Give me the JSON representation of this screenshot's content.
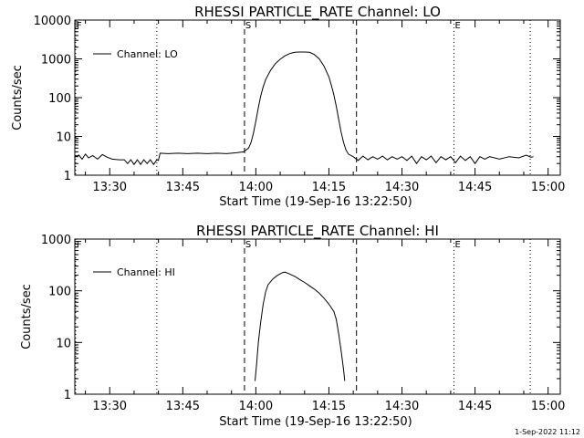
{
  "footer_timestamp": "1-Sep-2022 11:12",
  "chart_data": [
    {
      "type": "line",
      "title": "RHESSI PARTICLE_RATE Channel: LO",
      "xlabel": "Start Time (19-Sep-16 13:22:50)",
      "ylabel": "Counts/sec",
      "y_scale": "log",
      "xlim": [
        "13:22:50",
        "15:02:30"
      ],
      "ylim": [
        1,
        10000
      ],
      "x_ticks": [
        "13:30",
        "13:45",
        "14:00",
        "14:15",
        "14:30",
        "14:45",
        "15:00"
      ],
      "y_ticks": [
        "1",
        "10",
        "100",
        "1000",
        "10000"
      ],
      "legend": "top-left",
      "series": [
        {
          "name": "Channel: LO",
          "points": [
            [
              "13:22:50",
              3.0
            ],
            [
              "13:23:40",
              3.3
            ],
            [
              "13:24:20",
              2.6
            ],
            [
              "13:25:00",
              3.5
            ],
            [
              "13:25:40",
              2.8
            ],
            [
              "13:26:30",
              3.2
            ],
            [
              "13:27:30",
              2.6
            ],
            [
              "13:28:30",
              3.4
            ],
            [
              "13:29:30",
              2.9
            ],
            [
              "13:30:30",
              2.6
            ],
            [
              "13:32:00",
              2.5
            ],
            [
              "13:33:00",
              2.5
            ],
            [
              "13:33:40",
              2.0
            ],
            [
              "13:34:20",
              2.5
            ],
            [
              "13:35:00",
              1.9
            ],
            [
              "13:35:40",
              2.5
            ],
            [
              "13:36:20",
              1.9
            ],
            [
              "13:37:00",
              2.5
            ],
            [
              "13:37:40",
              2.0
            ],
            [
              "13:38:20",
              2.5
            ],
            [
              "13:39:00",
              1.9
            ],
            [
              "13:39:40",
              2.5
            ],
            [
              "13:40:00",
              2.4
            ],
            [
              "13:40:20",
              3.7
            ],
            [
              "13:42:00",
              3.6
            ],
            [
              "13:44:00",
              3.7
            ],
            [
              "13:46:00",
              3.6
            ],
            [
              "13:48:00",
              3.7
            ],
            [
              "13:50:00",
              3.6
            ],
            [
              "13:52:00",
              3.7
            ],
            [
              "13:54:00",
              3.6
            ],
            [
              "13:56:00",
              3.8
            ],
            [
              "13:57:30",
              4.0
            ],
            [
              "13:58:30",
              5.0
            ],
            [
              "13:59:00",
              7.0
            ],
            [
              "13:59:30",
              12.0
            ],
            [
              "14:00:00",
              25.0
            ],
            [
              "14:00:30",
              55.0
            ],
            [
              "14:01:00",
              110.0
            ],
            [
              "14:01:30",
              190.0
            ],
            [
              "14:02:00",
              290.0
            ],
            [
              "14:03:00",
              500.0
            ],
            [
              "14:04:00",
              750.0
            ],
            [
              "14:05:00",
              980.0
            ],
            [
              "14:06:00",
              1200.0
            ],
            [
              "14:07:00",
              1380.0
            ],
            [
              "14:08:00",
              1480.0
            ],
            [
              "14:09:00",
              1500.0
            ],
            [
              "14:10:00",
              1500.0
            ],
            [
              "14:11:00",
              1480.0
            ],
            [
              "14:12:00",
              1300.0
            ],
            [
              "14:13:00",
              1000.0
            ],
            [
              "14:14:00",
              650.0
            ],
            [
              "14:15:00",
              340.0
            ],
            [
              "14:15:30",
              210.0
            ],
            [
              "14:16:00",
              120.0
            ],
            [
              "14:16:30",
              60.0
            ],
            [
              "14:17:00",
              28.0
            ],
            [
              "14:17:30",
              13.0
            ],
            [
              "14:18:00",
              7.0
            ],
            [
              "14:18:30",
              4.5
            ],
            [
              "14:19:00",
              3.5
            ],
            [
              "14:20:00",
              3.0
            ],
            [
              "14:21:00",
              2.4
            ],
            [
              "14:22:00",
              3.1
            ],
            [
              "14:23:00",
              2.5
            ],
            [
              "14:24:00",
              3.0
            ],
            [
              "14:25:00",
              2.6
            ],
            [
              "14:26:00",
              3.1
            ],
            [
              "14:27:00",
              2.5
            ],
            [
              "14:28:00",
              3.0
            ],
            [
              "14:29:00",
              2.6
            ],
            [
              "14:30:00",
              3.0
            ],
            [
              "14:31:00",
              2.4
            ],
            [
              "14:32:00",
              3.1
            ],
            [
              "14:33:00",
              2.0
            ],
            [
              "14:34:00",
              3.0
            ],
            [
              "14:35:00",
              2.5
            ],
            [
              "14:36:00",
              3.1
            ],
            [
              "14:37:00",
              2.1
            ],
            [
              "14:38:00",
              3.0
            ],
            [
              "14:39:00",
              2.5
            ],
            [
              "14:40:00",
              3.0
            ],
            [
              "14:41:00",
              2.1
            ],
            [
              "14:42:00",
              3.1
            ],
            [
              "14:43:00",
              2.4
            ],
            [
              "14:44:00",
              3.0
            ],
            [
              "14:45:00",
              2.0
            ],
            [
              "14:46:00",
              3.0
            ],
            [
              "14:47:00",
              2.6
            ],
            [
              "14:48:00",
              3.0
            ],
            [
              "14:50:00",
              2.6
            ],
            [
              "14:52:00",
              3.0
            ],
            [
              "14:54:00",
              2.8
            ],
            [
              "14:55:30",
              3.3
            ],
            [
              "14:56:30",
              2.9
            ],
            [
              "14:57:00",
              3.0
            ]
          ]
        }
      ],
      "markers": [
        {
          "label": "F",
          "time": "13:23:00",
          "style": "dotted"
        },
        {
          "label": "",
          "time": "13:39:40",
          "style": "dotted"
        },
        {
          "label": "S",
          "time": "13:57:40",
          "style": "dashed"
        },
        {
          "label": "",
          "time": "14:20:40",
          "style": "dashed"
        },
        {
          "label": "E",
          "time": "14:40:40",
          "style": "dotted"
        },
        {
          "label": "",
          "time": "14:56:20",
          "style": "dotted"
        }
      ]
    },
    {
      "type": "line",
      "title": "RHESSI PARTICLE_RATE Channel: HI",
      "xlabel": "Start Time (19-Sep-16 13:22:50)",
      "ylabel": "Counts/sec",
      "y_scale": "log",
      "xlim": [
        "13:22:50",
        "15:02:30"
      ],
      "ylim": [
        1,
        1000
      ],
      "x_ticks": [
        "13:30",
        "13:45",
        "14:00",
        "14:15",
        "14:30",
        "14:45",
        "15:00"
      ],
      "y_ticks": [
        "1",
        "10",
        "100",
        "1000"
      ],
      "legend": "top-left",
      "series": [
        {
          "name": "Channel: HI",
          "points": [
            [
              "13:59:50",
              1.8
            ],
            [
              "14:00:10",
              4.0
            ],
            [
              "14:00:30",
              10.0
            ],
            [
              "14:01:00",
              25.0
            ],
            [
              "14:01:30",
              55.0
            ],
            [
              "14:02:00",
              95.0
            ],
            [
              "14:02:30",
              130.0
            ],
            [
              "14:03:30",
              170.0
            ],
            [
              "14:04:30",
              200.0
            ],
            [
              "14:05:30",
              225.0
            ],
            [
              "14:06:00",
              230.0
            ],
            [
              "14:07:00",
              210.0
            ],
            [
              "14:08:00",
              190.0
            ],
            [
              "14:09:00",
              165.0
            ],
            [
              "14:10:00",
              145.0
            ],
            [
              "14:11:00",
              125.0
            ],
            [
              "14:12:00",
              108.0
            ],
            [
              "14:13:00",
              90.0
            ],
            [
              "14:14:00",
              72.0
            ],
            [
              "14:15:00",
              55.0
            ],
            [
              "14:16:00",
              40.0
            ],
            [
              "14:16:30",
              28.0
            ],
            [
              "14:17:00",
              15.0
            ],
            [
              "14:17:30",
              7.0
            ],
            [
              "14:18:00",
              3.0
            ],
            [
              "14:18:15",
              1.8
            ]
          ]
        }
      ],
      "markers": [
        {
          "label": "F",
          "time": "13:23:00",
          "style": "dotted"
        },
        {
          "label": "",
          "time": "13:39:40",
          "style": "dotted"
        },
        {
          "label": "S",
          "time": "13:57:40",
          "style": "dashed"
        },
        {
          "label": "",
          "time": "14:20:40",
          "style": "dashed"
        },
        {
          "label": "E",
          "time": "14:40:40",
          "style": "dotted"
        },
        {
          "label": "",
          "time": "14:56:20",
          "style": "dotted"
        }
      ]
    }
  ]
}
